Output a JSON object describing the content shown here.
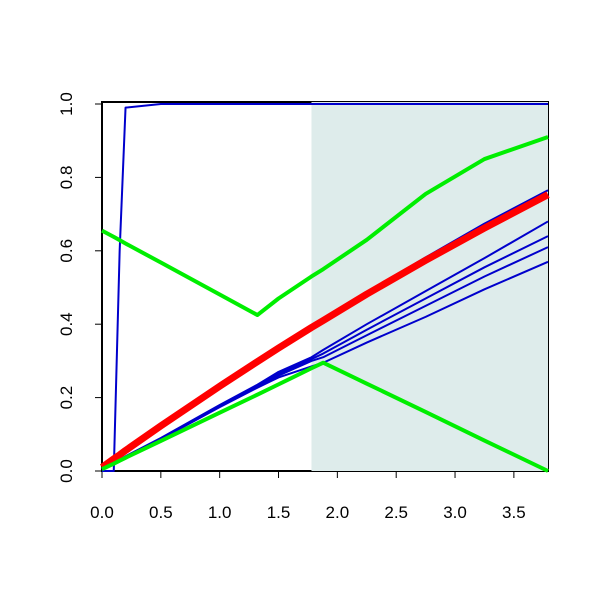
{
  "chart_data": {
    "type": "line",
    "x": [
      0,
      0.1,
      0.15,
      0.2,
      0.5,
      1.0,
      1.32,
      1.5,
      1.78,
      1.88,
      2.25,
      2.75,
      3.25,
      3.79
    ],
    "series": [
      {
        "color": "#0000cc",
        "width": 2,
        "values": [
          0,
          0,
          0.6,
          0.99,
          1,
          1,
          1,
          1,
          1,
          1,
          1,
          1,
          1,
          1
        ]
      },
      {
        "color": "#0000cc",
        "width": 2,
        "values": [
          0.005,
          0.03,
          0.042,
          0.053,
          0.12,
          0.23,
          0.298,
          0.336,
          0.394,
          0.414,
          0.487,
          0.582,
          0.674,
          0.765
        ]
      },
      {
        "color": "#0000cc",
        "width": 2,
        "values": [
          0.005,
          0.022,
          0.031,
          0.04,
          0.09,
          0.18,
          0.235,
          0.27,
          0.31,
          0.33,
          0.4,
          0.49,
          0.58,
          0.68
        ]
      },
      {
        "color": "#0000cc",
        "width": 2,
        "values": [
          0.005,
          0.021,
          0.03,
          0.039,
          0.089,
          0.178,
          0.232,
          0.265,
          0.305,
          0.32,
          0.385,
          0.47,
          0.555,
          0.64
        ]
      },
      {
        "color": "#0000cc",
        "width": 2,
        "values": [
          0.005,
          0.021,
          0.03,
          0.038,
          0.088,
          0.176,
          0.23,
          0.26,
          0.3,
          0.31,
          0.37,
          0.45,
          0.53,
          0.61
        ]
      },
      {
        "color": "#0000cc",
        "width": 2,
        "values": [
          0.005,
          0.02,
          0.029,
          0.037,
          0.087,
          0.174,
          0.227,
          0.255,
          0.285,
          0.295,
          0.35,
          0.42,
          0.495,
          0.57
        ]
      },
      {
        "color": "#ff0000",
        "width": 7,
        "values": [
          0.01,
          0.033,
          0.044,
          0.056,
          0.123,
          0.231,
          0.298,
          0.335,
          0.391,
          0.41,
          0.482,
          0.574,
          0.662,
          0.753
        ]
      },
      {
        "color": "#00ee00",
        "width": 4,
        "values": [
          0.655,
          0.638,
          0.629,
          0.62,
          0.568,
          0.481,
          0.425,
          0.47,
          0.53,
          0.55,
          0.63,
          0.755,
          0.85,
          0.91
        ]
      },
      {
        "color": "#00ee00",
        "width": 4,
        "values": [
          0.005,
          0.02,
          0.028,
          0.036,
          0.082,
          0.159,
          0.208,
          0.236,
          0.28,
          0.295,
          0.238,
          0.161,
          0.083,
          0
        ]
      }
    ],
    "shaded_region": {
      "xmin": 1.78,
      "xmax": 3.79,
      "color": "#deeceb"
    },
    "xlim": [
      0,
      3.79
    ],
    "ylim": [
      0,
      1
    ],
    "xticks": [
      {
        "value": 0,
        "label": "0.0"
      },
      {
        "value": 0.5,
        "label": "0.5"
      },
      {
        "value": 1,
        "label": "1.0"
      },
      {
        "value": 1.5,
        "label": "1.5"
      },
      {
        "value": 2,
        "label": "2.0"
      },
      {
        "value": 2.5,
        "label": "2.5"
      },
      {
        "value": 3,
        "label": "3.0"
      },
      {
        "value": 3.5,
        "label": "3.5"
      }
    ],
    "yticks": [
      {
        "value": 0,
        "label": "0.0"
      },
      {
        "value": 0.2,
        "label": "0.2"
      },
      {
        "value": 0.4,
        "label": "0.4"
      },
      {
        "value": 0.6,
        "label": "0.6"
      },
      {
        "value": 0.8,
        "label": "0.8"
      },
      {
        "value": 1,
        "label": "1.0"
      }
    ]
  }
}
